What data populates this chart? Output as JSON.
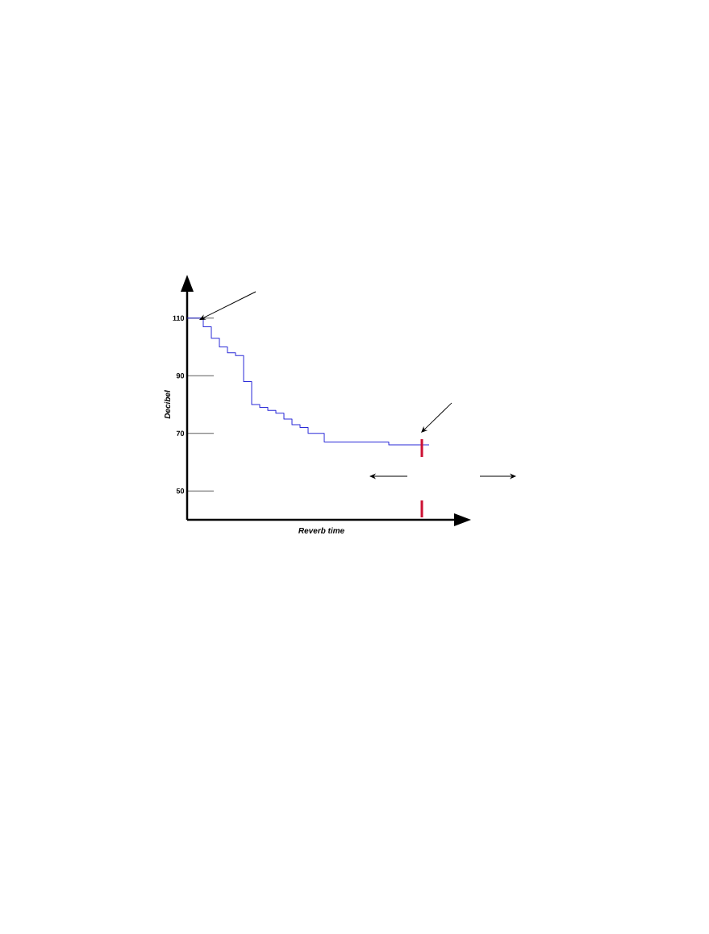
{
  "chart_data": {
    "type": "step",
    "xlabel": "Reverb time",
    "ylabel": "Decibel",
    "categories": [
      null,
      null,
      null,
      null,
      null,
      null,
      null,
      null,
      null,
      null,
      null,
      null,
      null,
      null,
      null,
      null,
      null,
      null,
      null,
      null,
      null,
      null,
      null,
      null,
      null,
      null,
      null,
      null,
      null,
      null,
      null
    ],
    "values": [
      110,
      110,
      107,
      103,
      100,
      98,
      97,
      88,
      80,
      79,
      78,
      77,
      75,
      73,
      72,
      70,
      70,
      67,
      67,
      67,
      67,
      67,
      67,
      67,
      67,
      66,
      66,
      66,
      66,
      66,
      66
    ],
    "color": "#2a2ad8",
    "ylim": [
      40,
      120
    ],
    "yticks": [
      50,
      70,
      90,
      110
    ]
  }
}
